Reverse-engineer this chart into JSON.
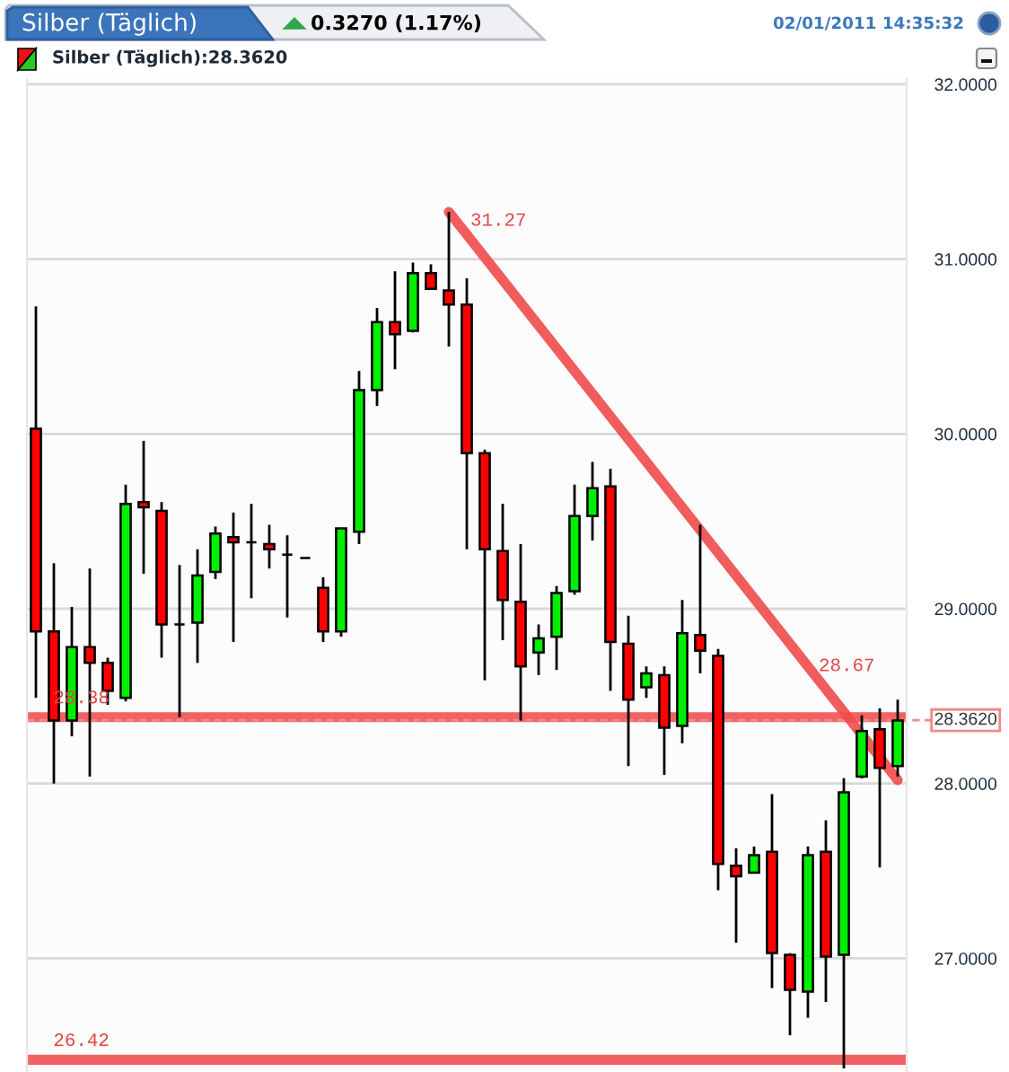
{
  "chart_data": {
    "type": "candlestick",
    "title": "Silber (Täglich)",
    "subtitle": "Silber (Täglich):28.3620",
    "annotations": [
      "0.3270 (1.17%)",
      "02/01/2011 14:35:32",
      "31.27",
      "28.67"
    ],
    "categories": [
      null,
      null,
      null,
      null,
      null,
      null,
      null,
      null,
      null,
      null,
      null,
      null,
      null,
      null,
      null,
      null,
      null,
      null,
      null,
      null,
      null,
      null,
      null,
      null,
      null,
      null,
      null,
      null,
      null,
      null,
      null,
      null,
      null,
      null,
      null,
      null,
      null,
      null,
      null,
      null,
      null,
      null,
      null,
      null,
      null,
      null,
      null,
      null,
      null
    ],
    "ohlc": [
      [
        30.03,
        30.73,
        28.49,
        28.87
      ],
      [
        28.87,
        29.26,
        28.0,
        28.36
      ],
      [
        28.36,
        29.01,
        28.27,
        28.78
      ],
      [
        28.78,
        29.23,
        28.04,
        28.69
      ],
      [
        28.69,
        28.72,
        28.45,
        28.53
      ],
      [
        28.49,
        29.71,
        28.47,
        29.6
      ],
      [
        29.61,
        29.96,
        29.2,
        29.58
      ],
      [
        29.56,
        29.61,
        28.72,
        28.91
      ],
      [
        28.91,
        29.25,
        28.38,
        28.91
      ],
      [
        28.92,
        29.34,
        28.69,
        29.19
      ],
      [
        29.21,
        29.47,
        29.17,
        29.43
      ],
      [
        29.41,
        29.55,
        28.81,
        29.38
      ],
      [
        29.38,
        29.6,
        29.06,
        29.38
      ],
      [
        29.37,
        29.48,
        29.23,
        29.34
      ],
      [
        29.31,
        29.42,
        28.95,
        29.31
      ],
      [
        29.29,
        29.29,
        29.29,
        29.29
      ],
      [
        29.12,
        29.18,
        28.81,
        28.87
      ],
      [
        28.87,
        29.46,
        28.84,
        29.46
      ],
      [
        29.44,
        30.36,
        29.37,
        30.25
      ],
      [
        30.25,
        30.72,
        30.16,
        30.64
      ],
      [
        30.64,
        30.93,
        30.37,
        30.57
      ],
      [
        30.59,
        30.98,
        30.58,
        30.92
      ],
      [
        30.92,
        30.97,
        30.83,
        30.83
      ],
      [
        30.82,
        31.27,
        30.5,
        30.74
      ],
      [
        30.74,
        30.89,
        29.34,
        29.89
      ],
      [
        29.89,
        29.91,
        28.59,
        29.34
      ],
      [
        29.33,
        29.6,
        28.82,
        29.05
      ],
      [
        29.04,
        29.37,
        28.36,
        28.67
      ],
      [
        28.75,
        28.91,
        28.62,
        28.83
      ],
      [
        28.84,
        29.13,
        28.65,
        29.09
      ],
      [
        29.1,
        29.71,
        29.08,
        29.53
      ],
      [
        29.53,
        29.84,
        29.39,
        29.69
      ],
      [
        29.7,
        29.8,
        28.53,
        28.81
      ],
      [
        28.8,
        28.96,
        28.1,
        28.48
      ],
      [
        28.55,
        28.67,
        28.49,
        28.63
      ],
      [
        28.62,
        28.67,
        28.05,
        28.32
      ],
      [
        28.33,
        29.05,
        28.23,
        28.86
      ],
      [
        28.85,
        29.48,
        28.63,
        28.76
      ],
      [
        28.73,
        28.77,
        27.39,
        27.54
      ],
      [
        27.53,
        27.63,
        27.09,
        27.47
      ],
      [
        27.49,
        27.64,
        27.49,
        27.59
      ],
      [
        27.61,
        27.94,
        26.83,
        27.03
      ],
      [
        27.02,
        27.03,
        26.56,
        26.82
      ],
      [
        26.81,
        27.64,
        26.66,
        27.59
      ],
      [
        27.61,
        27.79,
        26.75,
        27.01
      ],
      [
        27.02,
        28.03,
        26.37,
        27.95
      ],
      [
        28.04,
        28.39,
        28.03,
        28.3
      ],
      [
        28.31,
        28.43,
        27.52,
        28.09
      ],
      [
        28.1,
        28.48,
        28.04,
        28.36
      ]
    ],
    "colors": [
      "#ff0000",
      "#ff0000",
      "#00ee00",
      "#ff0000",
      "#ff0000",
      "#00ee00",
      "#ff0000",
      "#ff0000",
      "#000000",
      "#00ee00",
      "#00ee00",
      "#ff0000",
      "#000000",
      "#ff0000",
      "#000000",
      "#000000",
      "#ff0000",
      "#00ee00",
      "#00ee00",
      "#00ee00",
      "#ff0000",
      "#00ee00",
      "#ff0000",
      "#ff0000",
      "#ff0000",
      "#ff0000",
      "#ff0000",
      "#ff0000",
      "#00ee00",
      "#00ee00",
      "#00ee00",
      "#00ee00",
      "#ff0000",
      "#ff0000",
      "#00ee00",
      "#ff0000",
      "#00ee00",
      "#ff0000",
      "#ff0000",
      "#ff0000",
      "#00ee00",
      "#ff0000",
      "#ff0000",
      "#00ee00",
      "#ff0000",
      "#00ee00",
      "#00ee00",
      "#ff0000",
      "#00ee00"
    ],
    "series": [
      {
        "type": "line",
        "color": "#f04a4a",
        "values": [
          null,
          null,
          null,
          null,
          null,
          null,
          null,
          null,
          null,
          null,
          null,
          null,
          null,
          null,
          null,
          null,
          null,
          null,
          null,
          null,
          null,
          null,
          null,
          31.27,
          null,
          null,
          null,
          null,
          null,
          null,
          null,
          null,
          null,
          null,
          null,
          null,
          null,
          null,
          null,
          null,
          null,
          null,
          null,
          28.67,
          null,
          null,
          null,
          null,
          28.02
        ]
      }
    ],
    "ylim": [
      26.35,
      32.03
    ],
    "yticks": [
      {
        "value": 27,
        "label": "27.0000"
      },
      {
        "value": 28,
        "label": "28.0000"
      },
      {
        "value": 29,
        "label": "29.0000"
      },
      {
        "value": 30,
        "label": "30.0000"
      },
      {
        "value": 31,
        "label": "31.0000"
      },
      {
        "value": 32,
        "label": "32.0000"
      }
    ],
    "grid": "y",
    "ref_lines": [
      {
        "axis": "y",
        "value": 28.38,
        "label": "28.38",
        "color": "#f25a5a",
        "line_style": "solid"
      },
      {
        "axis": "y",
        "value": 26.42,
        "label": "26.42",
        "color": "#f25a5a",
        "line_style": "solid"
      },
      {
        "axis": "y",
        "value": 28.362,
        "label": "28.3620",
        "color": "#f08a8a",
        "line_style": "dashed"
      }
    ]
  }
}
